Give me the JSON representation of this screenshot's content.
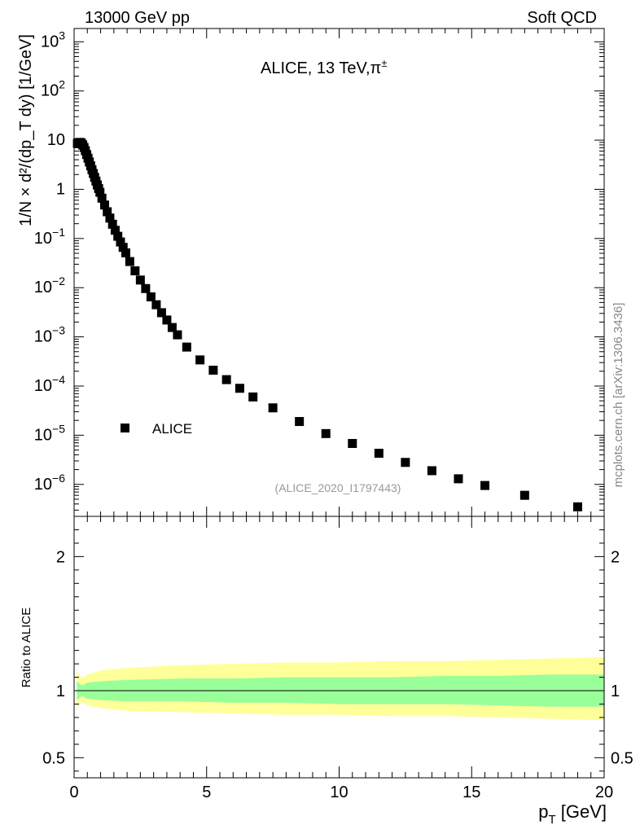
{
  "header": {
    "left": "13000 GeV pp",
    "right": "Soft QCD"
  },
  "side_label": "mcplots.cern.ch [arXiv:1306.3436]",
  "chart_data": [
    {
      "type": "scatter",
      "title": "ALICE, 13 TeV,π±",
      "title_main": "ALICE, 13 TeV,π",
      "title_sup": "±",
      "analysis_tag": "(ALICE_2020_I1797443)",
      "ylabel": "1/N × d²/(dp_T dy) [1/GeV]",
      "y_scale": "log",
      "ylim": [
        2e-07,
        1500
      ],
      "xlim": [
        0,
        20
      ],
      "legend": {
        "position": "bottom-left",
        "entries": [
          {
            "name": "ALICE",
            "marker": "square"
          }
        ]
      },
      "y_ticks": [
        {
          "mant": "10",
          "exp": "3"
        },
        {
          "mant": "10",
          "exp": "2"
        },
        {
          "mant": "10",
          "exp": ""
        },
        {
          "mant": "1",
          "exp": ""
        },
        {
          "mant": "10",
          "exp": "−1"
        },
        {
          "mant": "10",
          "exp": "−2"
        },
        {
          "mant": "10",
          "exp": "−3"
        },
        {
          "mant": "10",
          "exp": "−4"
        },
        {
          "mant": "10",
          "exp": "−5"
        },
        {
          "mant": "10",
          "exp": "−6"
        }
      ],
      "series": [
        {
          "name": "ALICE",
          "x": [
            0.125,
            0.175,
            0.225,
            0.275,
            0.325,
            0.375,
            0.425,
            0.475,
            0.525,
            0.575,
            0.625,
            0.675,
            0.725,
            0.775,
            0.825,
            0.875,
            0.925,
            0.975,
            1.05,
            1.15,
            1.25,
            1.35,
            1.45,
            1.55,
            1.65,
            1.75,
            1.85,
            1.95,
            2.1,
            2.3,
            2.5,
            2.7,
            2.9,
            3.1,
            3.3,
            3.5,
            3.7,
            3.9,
            4.25,
            4.75,
            5.25,
            5.75,
            6.25,
            6.75,
            7.5,
            8.5,
            9.5,
            10.5,
            11.5,
            12.5,
            13.5,
            14.5,
            15.5,
            17.0,
            19.0
          ],
          "y": [
            8.6,
            8.9,
            9.0,
            8.7,
            8.0,
            7.1,
            6.1,
            5.1,
            4.3,
            3.6,
            3.0,
            2.5,
            2.1,
            1.75,
            1.47,
            1.23,
            1.04,
            0.87,
            0.66,
            0.48,
            0.35,
            0.26,
            0.195,
            0.147,
            0.111,
            0.085,
            0.066,
            0.051,
            0.034,
            0.022,
            0.0143,
            0.0096,
            0.0065,
            0.0045,
            0.0031,
            0.0022,
            0.00155,
            0.0011,
            0.00062,
            0.00034,
            0.00021,
            0.000135,
            9e-05,
            6e-05,
            3.6e-05,
            1.9e-05,
            1.08e-05,
            6.8e-06,
            4.3e-06,
            2.8e-06,
            1.9e-06,
            1.3e-06,
            9.5e-07,
            6e-07,
            3.5e-07
          ]
        }
      ]
    },
    {
      "type": "area",
      "ylabel": "Ratio to ALICE",
      "xlabel": "p_T [GeV]",
      "xlim": [
        0,
        20
      ],
      "ylim": [
        0.35,
        2.3
      ],
      "y_ticks": [
        0.5,
        1,
        2
      ],
      "y_tick_labels": [
        "0.5",
        "1",
        "2"
      ],
      "x_ticks": [
        0,
        5,
        10,
        15,
        20
      ],
      "x_tick_labels": [
        "0",
        "5",
        "10",
        "15",
        "20"
      ],
      "reference_line": 1,
      "bands": [
        {
          "color": "#ffff99",
          "x": [
            0.1,
            0.3,
            0.5,
            1.0,
            2.0,
            4.0,
            6.0,
            8.0,
            10.0,
            12.0,
            14.0,
            16.0,
            18.0,
            20.0
          ],
          "upper": [
            1.15,
            1.09,
            1.12,
            1.15,
            1.17,
            1.19,
            1.2,
            1.21,
            1.21,
            1.22,
            1.22,
            1.23,
            1.24,
            1.25
          ],
          "lower": [
            0.86,
            0.92,
            0.89,
            0.87,
            0.85,
            0.84,
            0.83,
            0.82,
            0.82,
            0.81,
            0.81,
            0.8,
            0.79,
            0.78
          ]
        },
        {
          "color": "#99ff99",
          "x": [
            0.1,
            0.3,
            0.5,
            1.0,
            2.0,
            4.0,
            6.0,
            8.0,
            10.0,
            12.0,
            14.0,
            16.0,
            18.0,
            20.0
          ],
          "upper": [
            1.07,
            1.04,
            1.06,
            1.07,
            1.08,
            1.09,
            1.09,
            1.1,
            1.1,
            1.1,
            1.11,
            1.11,
            1.12,
            1.12
          ],
          "lower": [
            0.93,
            0.96,
            0.94,
            0.93,
            0.92,
            0.92,
            0.91,
            0.91,
            0.9,
            0.9,
            0.9,
            0.89,
            0.88,
            0.88
          ]
        }
      ]
    }
  ]
}
